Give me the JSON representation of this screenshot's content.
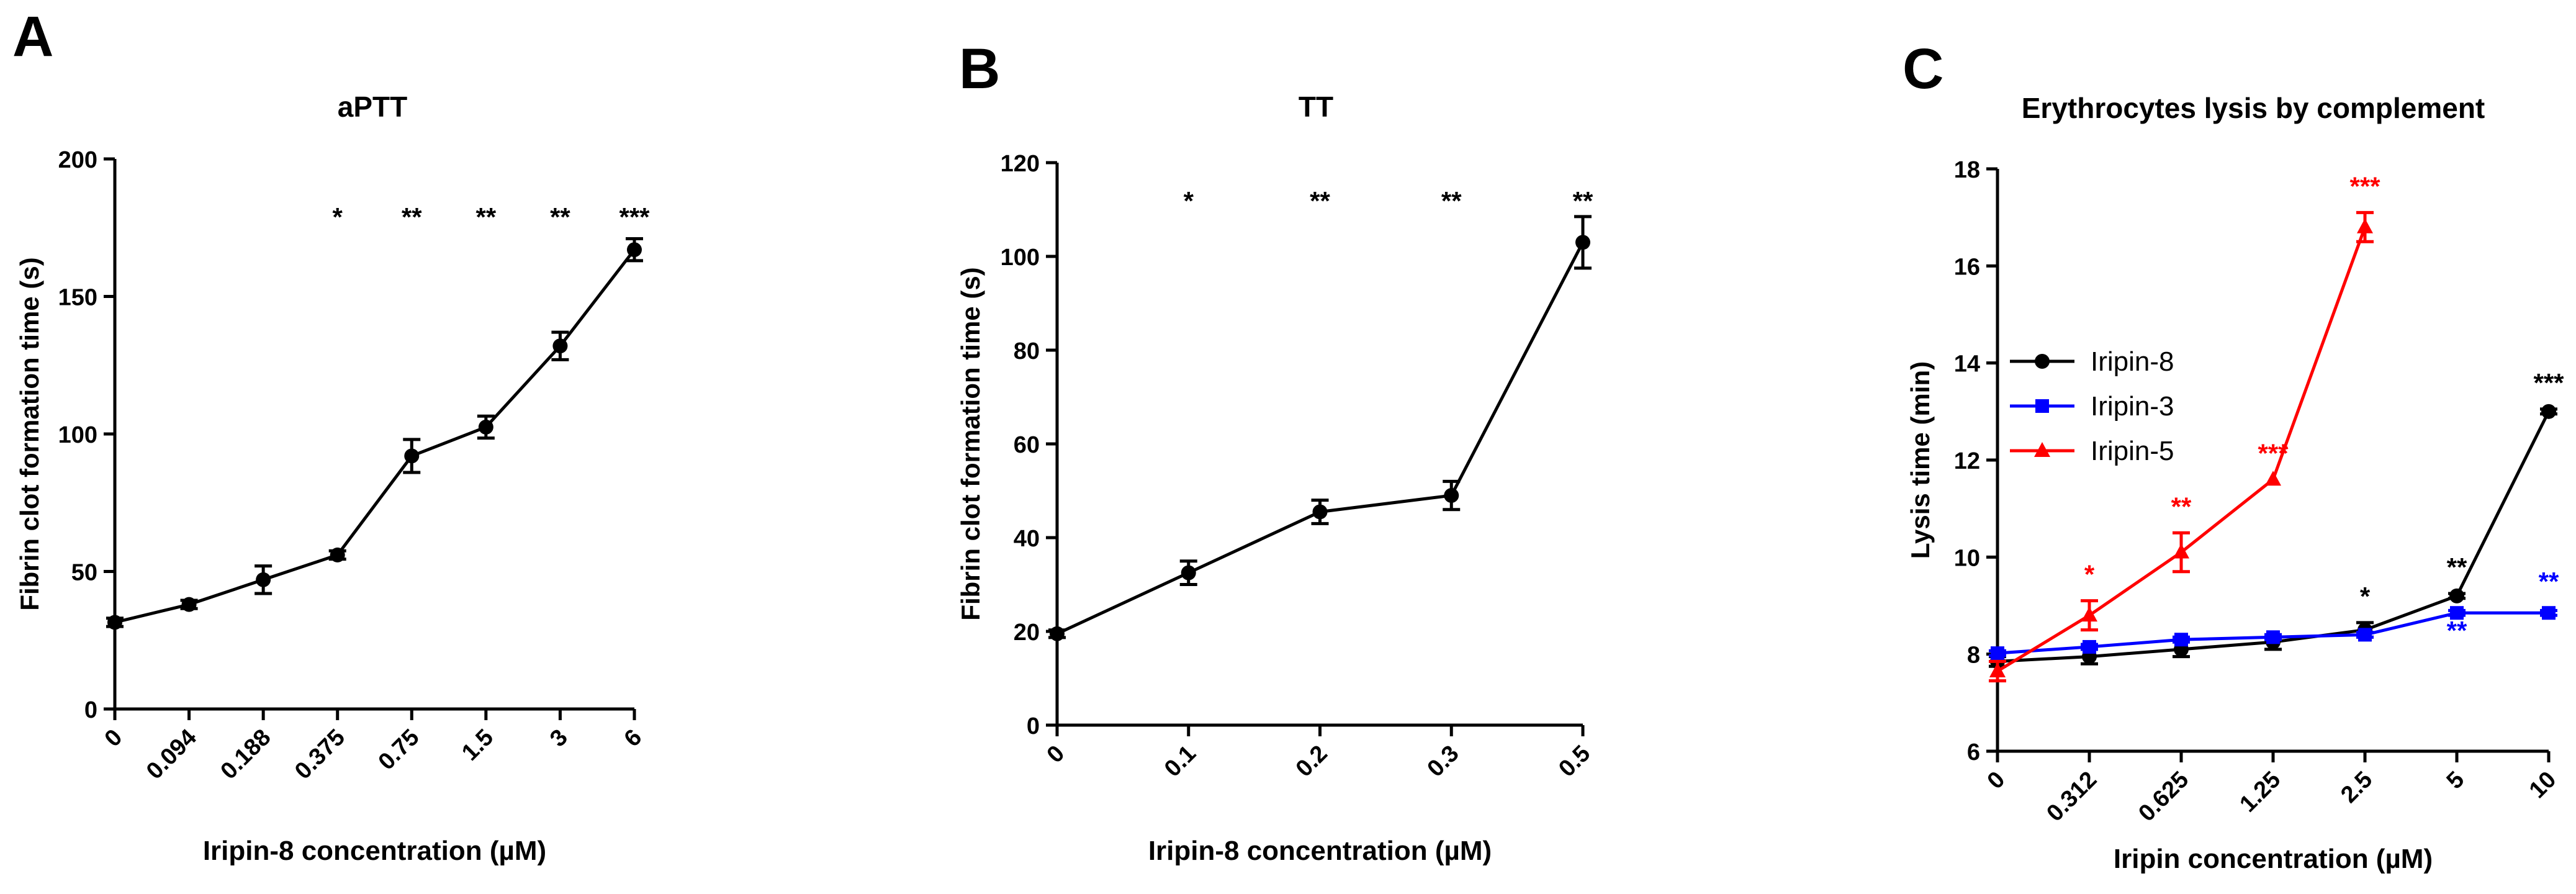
{
  "chart_data": [
    {
      "type": "line",
      "panel_label": "A",
      "title": "aPTT",
      "xlabel": "Iripin-8 concentration (µM)",
      "ylabel": "Fibrin clot formation time (s)",
      "categories": [
        "0",
        "0.094",
        "0.188",
        "0.375",
        "0.75",
        "1.5",
        "3",
        "6"
      ],
      "ylim": [
        0,
        200
      ],
      "yticks": [
        "0",
        "50",
        "100",
        "150",
        "200"
      ],
      "color": "#000000",
      "marker": "circle",
      "series": [
        {
          "values": [
            31.5,
            38,
            47,
            56,
            92,
            102.5,
            132,
            167
          ],
          "errors": [
            1.5,
            1.5,
            5,
            1.5,
            6,
            4,
            5,
            4
          ],
          "annotations": [
            "",
            "",
            "",
            "*",
            "**",
            "**",
            "**",
            "***"
          ]
        }
      ]
    },
    {
      "type": "line",
      "panel_label": "B",
      "title": "TT",
      "xlabel": "Iripin-8 concentration (µM)",
      "ylabel": "Fibrin clot formation time (s)",
      "categories": [
        "0",
        "0.1",
        "0.2",
        "0.3",
        "0.5"
      ],
      "ylim": [
        0,
        120
      ],
      "yticks": [
        "0",
        "20",
        "40",
        "60",
        "80",
        "100",
        "120"
      ],
      "color": "#000000",
      "marker": "circle",
      "series": [
        {
          "values": [
            19.5,
            32.5,
            45.5,
            49,
            103
          ],
          "errors": [
            0.8,
            2.5,
            2.5,
            3,
            5.5
          ],
          "annotations": [
            "",
            "*",
            "**",
            "**",
            "**"
          ]
        }
      ]
    },
    {
      "type": "line",
      "panel_label": "C",
      "title": "Erythrocytes lysis by complement",
      "xlabel": "Iripin concentration (µM)",
      "ylabel": "Lysis time (min)",
      "categories": [
        "0",
        "0.312",
        "0.625",
        "1.25",
        "2.5",
        "5",
        "10"
      ],
      "ylim": [
        6,
        18
      ],
      "yticks": [
        "6",
        "8",
        "10",
        "12",
        "14",
        "16",
        "18"
      ],
      "legend_position": "left",
      "series": [
        {
          "name": "Iripin-8",
          "color": "#000000",
          "marker": "circle",
          "values": [
            7.85,
            7.95,
            8.1,
            8.25,
            8.5,
            9.2,
            13
          ],
          "errors": [
            0.1,
            0.15,
            0.15,
            0.15,
            0.15,
            0.05,
            0.05
          ],
          "annotations": [
            "",
            "",
            "",
            "",
            "*",
            "**",
            "***"
          ]
        },
        {
          "name": "Iripin-3",
          "color": "#0000ff",
          "marker": "square",
          "values": [
            8.02,
            8.15,
            8.3,
            8.35,
            8.4,
            8.85,
            8.85
          ],
          "errors": [
            0.05,
            0.05,
            0.05,
            0.05,
            0.05,
            0.05,
            0.05
          ],
          "annotations": [
            "",
            "",
            "",
            "",
            "",
            "**",
            "**"
          ]
        },
        {
          "name": "Iripin-5",
          "color": "#ff0000",
          "marker": "triangle",
          "values": [
            7.65,
            8.8,
            10.1,
            11.6,
            16.8,
            null,
            null
          ],
          "errors": [
            0.2,
            0.3,
            0.4,
            0,
            0.3,
            0,
            0
          ],
          "annotations": [
            "",
            "*",
            "**",
            "***",
            "***",
            "",
            ""
          ]
        }
      ]
    }
  ]
}
